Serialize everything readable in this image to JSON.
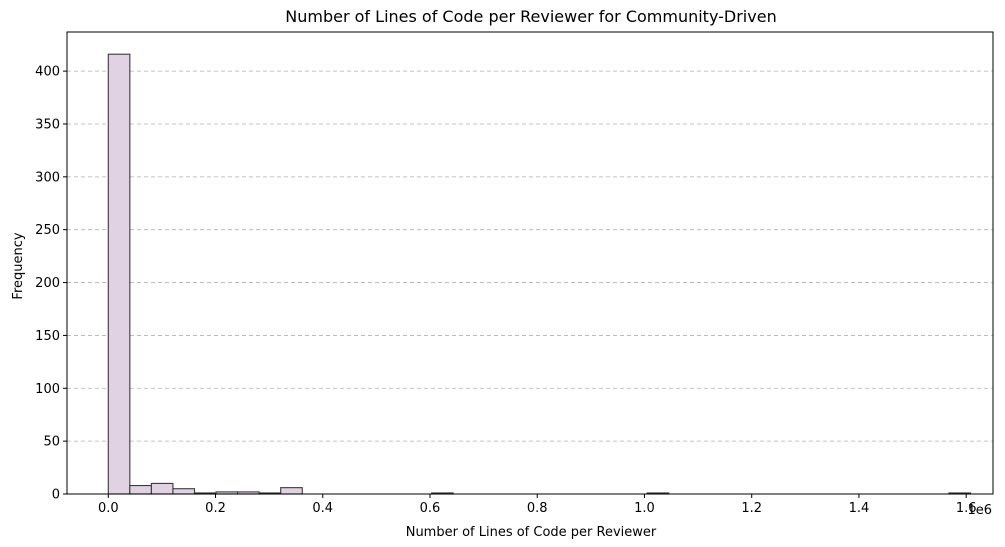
{
  "chart_data": {
    "type": "bar",
    "title": "Number of Lines of Code per Reviewer for Community-Driven",
    "xlabel": "Number of Lines of Code per Reviewer",
    "ylabel": "Frequency",
    "x_scale_label": "1e6",
    "xlim": [
      -0.077,
      1.65
    ],
    "ylim": [
      0,
      437
    ],
    "xticks": [
      0.0,
      0.2,
      0.4,
      0.6,
      0.8,
      1.0,
      1.2,
      1.4,
      1.6
    ],
    "xtick_labels": [
      "0.0",
      "0.2",
      "0.4",
      "0.6",
      "0.8",
      "1.0",
      "1.2",
      "1.4",
      "1.6"
    ],
    "yticks": [
      0,
      50,
      100,
      150,
      200,
      250,
      300,
      350,
      400
    ],
    "ytick_labels": [
      "0",
      "50",
      "100",
      "150",
      "200",
      "250",
      "300",
      "350",
      "400"
    ],
    "grid": "y-dashed",
    "bin_start": 0.0,
    "bin_width": 0.0402,
    "counts": [
      416,
      8,
      10,
      5,
      1,
      2,
      2,
      1,
      6,
      0,
      0,
      0,
      0,
      0,
      0,
      1,
      0,
      0,
      0,
      0,
      0,
      0,
      0,
      0,
      0,
      1,
      0,
      0,
      0,
      0,
      0,
      0,
      0,
      0,
      0,
      0,
      0,
      0,
      0,
      1
    ],
    "bar_color": "#e1d2e3",
    "edge_color": "#3a3a3a"
  }
}
